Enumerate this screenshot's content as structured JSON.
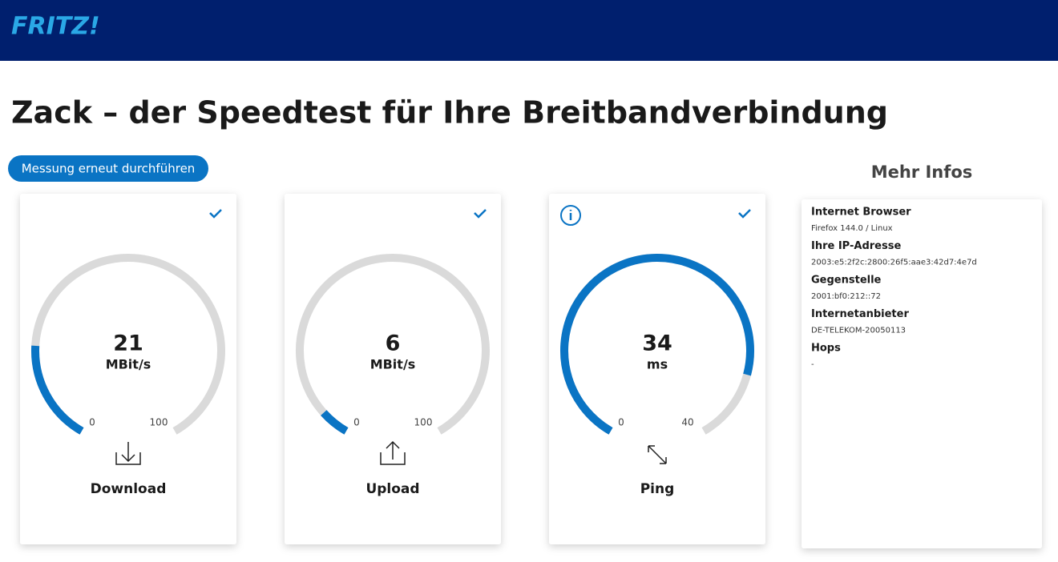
{
  "header": {
    "logo": "FRITZ!"
  },
  "title": "Zack – der Speedtest für Ihre Breitbandverbindung",
  "button": "Messung erneut durchführen",
  "gauges": [
    {
      "value": 21,
      "unit": "MBit/s",
      "min": 0,
      "max": 100,
      "label": "Download"
    },
    {
      "value": 6,
      "unit": "MBit/s",
      "min": 0,
      "max": 100,
      "label": "Upload"
    },
    {
      "value": 34,
      "unit": "ms",
      "min": 0,
      "max": 40,
      "label": "Ping"
    }
  ],
  "info": {
    "title": "Mehr Infos",
    "items": [
      {
        "label": "Internet Browser",
        "value": "Firefox 144.0 / Linux"
      },
      {
        "label": "Ihre IP-Adresse",
        "value": "2003:e5:2f2c:2800:26f5:aae3:42d7:4e7d"
      },
      {
        "label": "Gegenstelle",
        "value": "2001:bf0:212::72"
      },
      {
        "label": "Internetanbieter",
        "value": "DE-TELEKOM-20050113"
      },
      {
        "label": "Hops",
        "value": "-"
      }
    ]
  }
}
